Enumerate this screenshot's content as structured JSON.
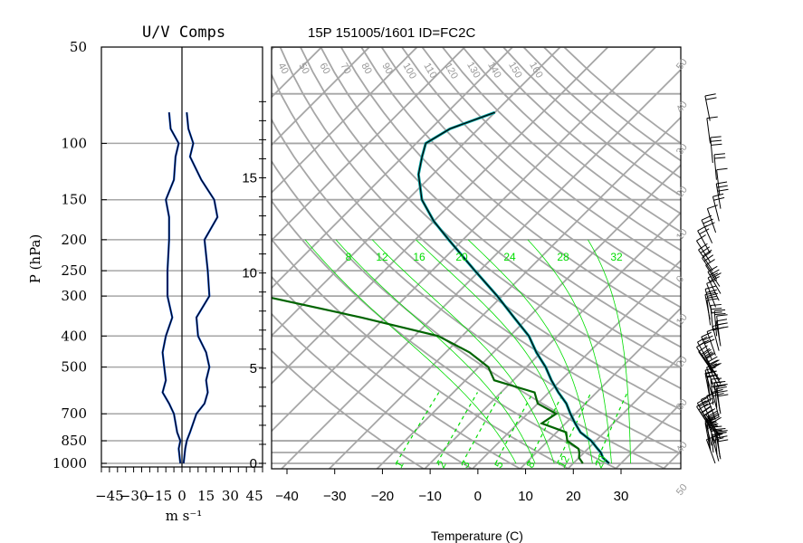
{
  "colors": {
    "isobar": "#a6a6a6",
    "isotherm": "#a6a6a6",
    "adiabat": "#a6a6a6",
    "moist_adiabat": "#00dd00",
    "mixing_ratio": "#00dd00",
    "temperature": "#0b4a8c",
    "dewpoint": "#006400",
    "virtual_temp": "#00a0a0",
    "wind_barb": "#000000"
  },
  "chart_data": [
    {
      "type": "line",
      "title": "U/V Comps",
      "xlabel": "m s⁻¹",
      "ylabel": "P (hPa)",
      "xlim": [
        -50,
        50
      ],
      "x_tick_labels": [
        "−45",
        "−30",
        "−15",
        "0",
        "15",
        "30",
        "45"
      ],
      "y_tick_labels": [
        "50",
        "100",
        "150",
        "200",
        "250",
        "300",
        "400",
        "500",
        "700",
        "850",
        "1000"
      ],
      "series": [
        {
          "name": "U",
          "p": [
            1000,
            900,
            850,
            800,
            700,
            650,
            600,
            550,
            500,
            450,
            400,
            350,
            300,
            250,
            200,
            170,
            150,
            130,
            110,
            100,
            90,
            80
          ],
          "values": [
            1,
            2,
            3,
            5,
            9,
            14,
            16,
            15,
            17,
            15,
            10,
            9,
            17,
            16,
            14,
            22,
            20,
            12,
            5,
            7,
            4,
            3
          ]
        },
        {
          "name": "V",
          "p": [
            1000,
            900,
            850,
            800,
            700,
            650,
            600,
            550,
            500,
            450,
            400,
            350,
            300,
            250,
            200,
            170,
            150,
            130,
            110,
            100,
            90,
            80
          ],
          "values": [
            -1,
            -2,
            -1,
            -3,
            -5,
            -8,
            -12,
            -10,
            -11,
            -12,
            -10,
            -6,
            -9,
            -9,
            -8,
            -8,
            -10,
            -5,
            -4,
            -2,
            -7,
            -8
          ]
        }
      ]
    },
    {
      "type": "line",
      "title": "15P 151005/1601 ID=FC2C",
      "xlabel": "Temperature (C)",
      "xlim": [
        -45,
        40
      ],
      "x_tick_labels": [
        "−40",
        "−30",
        "−20",
        "−10",
        "0",
        "10",
        "20",
        "30"
      ],
      "y2_tick_labels": [
        "0",
        "5",
        "10",
        "15"
      ],
      "isotherm_labels": [
        "50",
        "40",
        "30",
        "20",
        "10",
        "0",
        "10",
        "20",
        "30",
        "40",
        "50"
      ],
      "adiabat_labels": [
        "40",
        "50",
        "60",
        "70",
        "80",
        "90",
        "100",
        "110",
        "120",
        "130",
        "140",
        "150",
        "160"
      ],
      "moist_labels": [
        "8",
        "12",
        "16",
        "20",
        "24",
        "28",
        "32"
      ],
      "mixing_labels": [
        "1",
        "2",
        "3",
        "5",
        "8",
        "12",
        "20"
      ],
      "series": [
        {
          "name": "T",
          "p": [
            1000,
            960,
            925,
            900,
            850,
            800,
            750,
            700,
            650,
            600,
            550,
            500,
            450,
            400,
            350,
            300,
            250,
            200,
            175,
            150,
            125,
            110,
            100,
            90,
            80
          ],
          "values": [
            27.5,
            25,
            23.5,
            22,
            19,
            15,
            12,
            9,
            6,
            2,
            -2,
            -6,
            -11,
            -16,
            -23,
            -31,
            -41,
            -53,
            -60,
            -67,
            -73,
            -76,
            -78,
            -76,
            -70
          ]
        },
        {
          "name": "Td",
          "p": [
            1000,
            960,
            925,
            900,
            850,
            800,
            750,
            700,
            650,
            600,
            550,
            500,
            450,
            400,
            350,
            300
          ],
          "values": [
            22,
            20,
            19,
            18,
            14,
            12,
            5,
            6,
            0,
            -3,
            -14,
            -18,
            -25,
            -35,
            -55,
            -80
          ]
        }
      ]
    }
  ]
}
